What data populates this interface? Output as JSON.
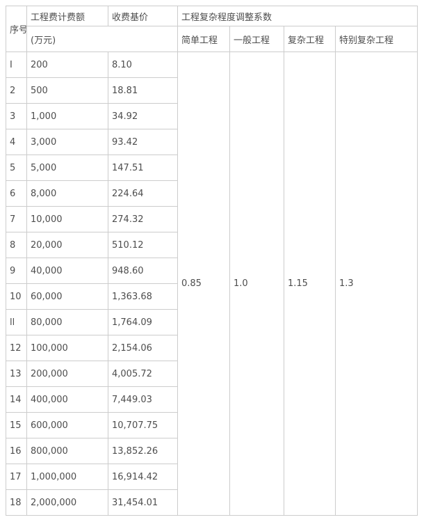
{
  "chart_data": {
    "type": "table",
    "title": "工程复杂程度调整系数",
    "header": {
      "serial": "序号",
      "fee_amount": "工程费计费额",
      "fee_amount_unit": "(万元)",
      "base_price": "收费基价",
      "complexity_group": "工程复杂程度调整系数",
      "complexity_levels": [
        "简单工程",
        "一般工程",
        "复杂工程",
        "特别复杂工程"
      ]
    },
    "columns": [
      "序号",
      "工程费计费额(万元)",
      "收费基价",
      "简单工程",
      "一般工程",
      "复杂工程",
      "特别复杂工程"
    ],
    "rows": [
      {
        "no": "I",
        "amount": "200",
        "price": "8.10"
      },
      {
        "no": "2",
        "amount": "500",
        "price": "18.81"
      },
      {
        "no": "3",
        "amount": "1,000",
        "price": "34.92"
      },
      {
        "no": "4",
        "amount": "3,000",
        "price": "93.42"
      },
      {
        "no": "5",
        "amount": "5,000",
        "price": "147.51"
      },
      {
        "no": "6",
        "amount": "8,000",
        "price": "224.64"
      },
      {
        "no": "7",
        "amount": "10,000",
        "price": "274.32"
      },
      {
        "no": "8",
        "amount": "20,000",
        "price": "510.12"
      },
      {
        "no": "9",
        "amount": "40,000",
        "price": "948.60"
      },
      {
        "no": "10",
        "amount": "60,000",
        "price": "1,363.68"
      },
      {
        "no": "ll",
        "amount": "80,000",
        "price": "1,764.09"
      },
      {
        "no": "12",
        "amount": "100,000",
        "price": "2,154.06"
      },
      {
        "no": "13",
        "amount": "200,000",
        "price": "4,005.72"
      },
      {
        "no": "14",
        "amount": "400,000",
        "price": "7,449.03"
      },
      {
        "no": "15",
        "amount": "600,000",
        "price": "10,707.75"
      },
      {
        "no": "16",
        "amount": "800,000",
        "price": "13,852.26"
      },
      {
        "no": "17",
        "amount": "1,000,000",
        "price": "16,914.42"
      },
      {
        "no": "18",
        "amount": "2,000,000",
        "price": "31,454.01"
      }
    ],
    "coefficients": [
      "0.85",
      "1.0",
      "1.15",
      "1.3"
    ]
  },
  "colors": {
    "border": "#cccccc",
    "text": "#4d4d4d",
    "background": "#ffffff"
  }
}
